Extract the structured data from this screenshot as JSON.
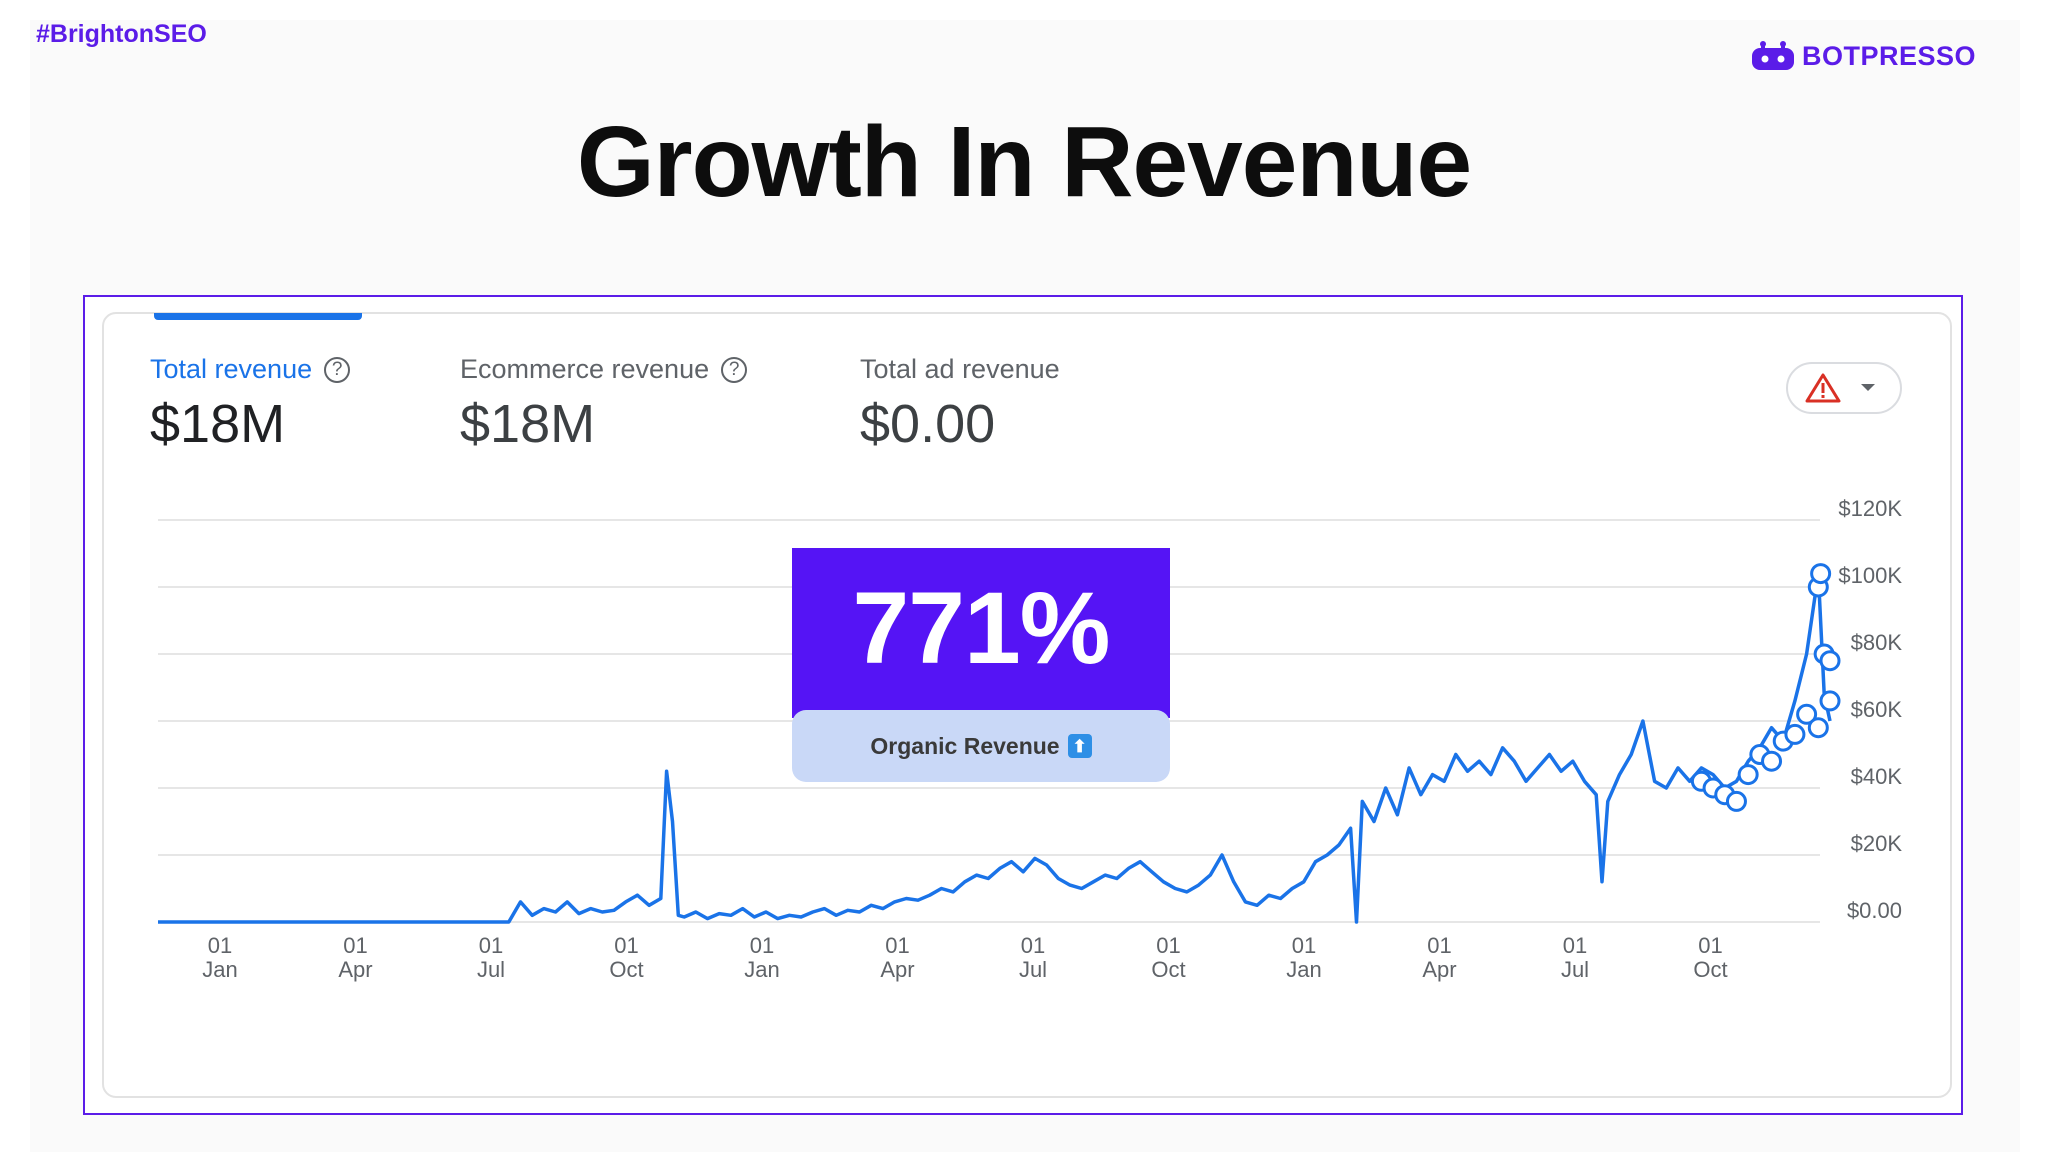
{
  "header": {
    "hashtag": "#BrightonSEO",
    "brand": "BOTPRESSO",
    "title": "Growth In Revenue"
  },
  "metrics": [
    {
      "label": "Total revenue",
      "value": "$18M",
      "active": true,
      "help": true
    },
    {
      "label": "Ecommerce revenue",
      "value": "$18M",
      "active": false,
      "help": true
    },
    {
      "label": "Total ad revenue",
      "value": "$0.00",
      "active": false,
      "help": false
    }
  ],
  "warning_button": {
    "icon": "warning-icon",
    "chevron": "chevron-down-icon"
  },
  "highlight": {
    "value": "771%",
    "label": "Organic Revenue",
    "icon": "up-arrow-icon"
  },
  "colors": {
    "accent": "#5b1ce8",
    "line": "#1a73e8",
    "badge": "#5514f5",
    "badge_label_bg": "#c9d8f7"
  },
  "chart_data": {
    "type": "line",
    "title": "",
    "xlabel": "",
    "ylabel": "",
    "ylim": [
      0,
      120000
    ],
    "y_ticks": [
      "$0.00",
      "$20K",
      "$40K",
      "$60K",
      "$80K",
      "$100K",
      "$120K"
    ],
    "x_ticks": [
      {
        "day": "01",
        "month": "Jan"
      },
      {
        "day": "01",
        "month": "Apr"
      },
      {
        "day": "01",
        "month": "Jul"
      },
      {
        "day": "01",
        "month": "Oct"
      },
      {
        "day": "01",
        "month": "Jan"
      },
      {
        "day": "01",
        "month": "Apr"
      },
      {
        "day": "01",
        "month": "Jul"
      },
      {
        "day": "01",
        "month": "Oct"
      },
      {
        "day": "01",
        "month": "Jan"
      },
      {
        "day": "01",
        "month": "Apr"
      },
      {
        "day": "01",
        "month": "Jul"
      },
      {
        "day": "01",
        "month": "Oct"
      }
    ],
    "series": [
      {
        "values": [
          [
            0,
            0
          ],
          [
            6,
            0
          ],
          [
            12,
            0
          ],
          [
            18,
            0
          ],
          [
            24,
            0
          ],
          [
            30,
            0
          ],
          [
            31,
            6000
          ],
          [
            32,
            2000
          ],
          [
            33,
            4000
          ],
          [
            34,
            3000
          ],
          [
            35,
            6000
          ],
          [
            36,
            2500
          ],
          [
            37,
            4000
          ],
          [
            38,
            3000
          ],
          [
            39,
            3500
          ],
          [
            40,
            6000
          ],
          [
            41,
            8000
          ],
          [
            42,
            5000
          ],
          [
            43,
            7000
          ],
          [
            43.5,
            45000
          ],
          [
            44,
            30000
          ],
          [
            44.5,
            2000
          ],
          [
            45,
            1500
          ],
          [
            46,
            3000
          ],
          [
            47,
            1000
          ],
          [
            48,
            2500
          ],
          [
            49,
            2000
          ],
          [
            50,
            4000
          ],
          [
            51,
            1500
          ],
          [
            52,
            3000
          ],
          [
            53,
            1000
          ],
          [
            54,
            2000
          ],
          [
            55,
            1500
          ],
          [
            56,
            3000
          ],
          [
            57,
            4000
          ],
          [
            58,
            2000
          ],
          [
            59,
            3500
          ],
          [
            60,
            3000
          ],
          [
            61,
            5000
          ],
          [
            62,
            4000
          ],
          [
            63,
            6000
          ],
          [
            64,
            7000
          ],
          [
            65,
            6500
          ],
          [
            66,
            8000
          ],
          [
            67,
            10000
          ],
          [
            68,
            9000
          ],
          [
            69,
            12000
          ],
          [
            70,
            14000
          ],
          [
            71,
            13000
          ],
          [
            72,
            16000
          ],
          [
            73,
            18000
          ],
          [
            74,
            15000
          ],
          [
            75,
            19000
          ],
          [
            76,
            17000
          ],
          [
            77,
            13000
          ],
          [
            78,
            11000
          ],
          [
            79,
            10000
          ],
          [
            80,
            12000
          ],
          [
            81,
            14000
          ],
          [
            82,
            13000
          ],
          [
            83,
            16000
          ],
          [
            84,
            18000
          ],
          [
            85,
            15000
          ],
          [
            86,
            12000
          ],
          [
            87,
            10000
          ],
          [
            88,
            9000
          ],
          [
            89,
            11000
          ],
          [
            90,
            14000
          ],
          [
            91,
            20000
          ],
          [
            92,
            12000
          ],
          [
            93,
            6000
          ],
          [
            94,
            5000
          ],
          [
            95,
            8000
          ],
          [
            96,
            7000
          ],
          [
            97,
            10000
          ],
          [
            98,
            12000
          ],
          [
            99,
            18000
          ],
          [
            100,
            20000
          ],
          [
            101,
            23000
          ],
          [
            102,
            28000
          ],
          [
            102.5,
            0
          ],
          [
            103,
            36000
          ],
          [
            104,
            30000
          ],
          [
            105,
            40000
          ],
          [
            106,
            32000
          ],
          [
            107,
            46000
          ],
          [
            108,
            38000
          ],
          [
            109,
            44000
          ],
          [
            110,
            42000
          ],
          [
            111,
            50000
          ],
          [
            112,
            45000
          ],
          [
            113,
            48000
          ],
          [
            114,
            44000
          ],
          [
            115,
            52000
          ],
          [
            116,
            48000
          ],
          [
            117,
            42000
          ],
          [
            118,
            46000
          ],
          [
            119,
            50000
          ],
          [
            120,
            45000
          ],
          [
            121,
            48000
          ],
          [
            122,
            42000
          ],
          [
            123,
            38000
          ],
          [
            123.5,
            12000
          ],
          [
            124,
            36000
          ],
          [
            125,
            44000
          ],
          [
            126,
            50000
          ],
          [
            127,
            60000
          ],
          [
            128,
            42000
          ],
          [
            129,
            40000
          ],
          [
            130,
            46000
          ],
          [
            131,
            42000
          ],
          [
            132,
            46000
          ],
          [
            133,
            44000
          ],
          [
            134,
            40000
          ],
          [
            135,
            42000
          ],
          [
            136,
            48000
          ],
          [
            137,
            52000
          ],
          [
            138,
            58000
          ],
          [
            139,
            54000
          ],
          [
            140,
            66000
          ],
          [
            141,
            80000
          ],
          [
            142,
            104000
          ],
          [
            142.5,
            68000
          ],
          [
            143,
            60000
          ]
        ]
      }
    ],
    "markers": [
      [
        132,
        42000
      ],
      [
        133,
        40000
      ],
      [
        134,
        38000
      ],
      [
        135,
        36000
      ],
      [
        136,
        44000
      ],
      [
        137,
        50000
      ],
      [
        138,
        48000
      ],
      [
        139,
        54000
      ],
      [
        140,
        56000
      ],
      [
        141,
        62000
      ],
      [
        142,
        58000
      ],
      [
        143,
        66000
      ],
      [
        142.5,
        80000
      ],
      [
        142,
        100000
      ],
      [
        142.2,
        104000
      ],
      [
        143,
        78000
      ]
    ]
  }
}
